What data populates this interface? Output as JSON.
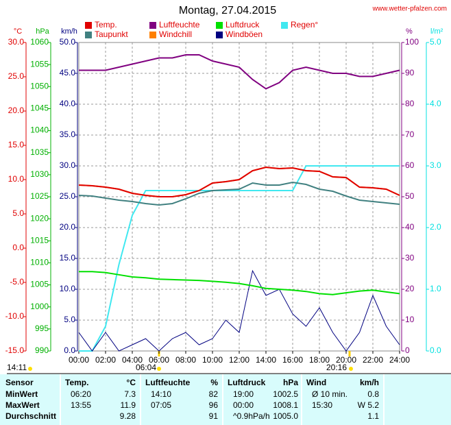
{
  "title": "Montag, 27.04.2015",
  "site": "www.wetter-pfalzen.com",
  "chart_data": {
    "type": "line",
    "grid": true,
    "x": [
      0,
      1,
      2,
      3,
      4,
      5,
      6,
      7,
      8,
      9,
      10,
      11,
      12,
      13,
      14,
      15,
      16,
      17,
      18,
      19,
      20,
      21,
      22,
      23,
      24
    ],
    "xlim": [
      0,
      24
    ],
    "xticks": [
      {
        "value": 0,
        "label": "00:00"
      },
      {
        "value": 2,
        "label": "02:00"
      },
      {
        "value": 4,
        "label": "04:00"
      },
      {
        "value": 6,
        "label": "06:00"
      },
      {
        "value": 8,
        "label": "08:00"
      },
      {
        "value": 10,
        "label": "10:00"
      },
      {
        "value": 12,
        "label": "12:00"
      },
      {
        "value": 14,
        "label": "14:00"
      },
      {
        "value": 16,
        "label": "16:00"
      },
      {
        "value": 18,
        "label": "18:00"
      },
      {
        "value": 20,
        "label": "20:00"
      },
      {
        "value": 22,
        "label": "22:00"
      },
      {
        "value": 24,
        "label": "24:00"
      }
    ],
    "axes": [
      {
        "unit": "°C",
        "side": "left",
        "color": "#e00000",
        "lim": [
          -15,
          30
        ],
        "ticks": [
          {
            "value": -15,
            "label": "-15.0"
          },
          {
            "value": -10,
            "label": "-10.0"
          },
          {
            "value": -5,
            "label": "-5.0"
          },
          {
            "value": 0,
            "label": "0.0"
          },
          {
            "value": 5,
            "label": "5.0"
          },
          {
            "value": 10,
            "label": "10.0"
          },
          {
            "value": 15,
            "label": "15.0"
          },
          {
            "value": 20,
            "label": "20.0"
          },
          {
            "value": 25,
            "label": "25.0"
          },
          {
            "value": 30,
            "label": "30.0"
          }
        ]
      },
      {
        "unit": "hPa",
        "side": "left",
        "color": "#00b000",
        "lim": [
          990,
          1060
        ],
        "ticks": [
          990,
          995,
          1000,
          1005,
          1010,
          1015,
          1020,
          1025,
          1030,
          1035,
          1040,
          1045,
          1050,
          1055,
          1060
        ]
      },
      {
        "unit": "km/h",
        "side": "left",
        "color": "#000080",
        "lim": [
          0,
          50
        ],
        "grid": true,
        "ticks": [
          {
            "value": 0,
            "label": "0.0"
          },
          {
            "value": 5,
            "label": "5.0"
          },
          {
            "value": 10,
            "label": "10.0"
          },
          {
            "value": 15,
            "label": "15.0"
          },
          {
            "value": 20,
            "label": "20.0"
          },
          {
            "value": 25,
            "label": "25.0"
          },
          {
            "value": 30,
            "label": "30.0"
          },
          {
            "value": 35,
            "label": "35.0"
          },
          {
            "value": 40,
            "label": "40.0"
          },
          {
            "value": 45,
            "label": "45.0"
          },
          {
            "value": 50,
            "label": "50.0"
          }
        ]
      },
      {
        "unit": "%",
        "side": "right",
        "color": "#800080",
        "lim": [
          0,
          100
        ],
        "ticks": [
          0,
          10,
          20,
          30,
          40,
          50,
          60,
          70,
          80,
          90,
          100
        ]
      },
      {
        "unit": "l/m²",
        "side": "right",
        "color": "#00e0e0",
        "lim": [
          0,
          5
        ],
        "ticks": [
          {
            "value": 0,
            "label": "0.0"
          },
          {
            "value": 1,
            "label": "1.0"
          },
          {
            "value": 2,
            "label": "2.0"
          },
          {
            "value": 3,
            "label": "3.0"
          },
          {
            "value": 4,
            "label": "4.0"
          },
          {
            "value": 5,
            "label": "5.0"
          }
        ]
      }
    ],
    "series": [
      {
        "name": "Temp.",
        "color": "#e00000",
        "axis": "°C",
        "values": [
          9.2,
          9.1,
          8.9,
          8.6,
          8.0,
          7.7,
          7.5,
          7.5,
          7.8,
          8.4,
          9.5,
          9.7,
          10.0,
          11.3,
          11.8,
          11.6,
          11.7,
          11.3,
          11.2,
          10.4,
          10.3,
          8.9,
          8.8,
          8.6,
          7.7
        ]
      },
      {
        "name": "Luftfeuchte",
        "color": "#800080",
        "axis": "%",
        "values": [
          91,
          91,
          91,
          92,
          93,
          94,
          95,
          95,
          96,
          96,
          94,
          93,
          92,
          88,
          85,
          87,
          91,
          92,
          91,
          90,
          90,
          89,
          89,
          90,
          91
        ]
      },
      {
        "name": "Luftdruck",
        "color": "#00e000",
        "axis": "hPa",
        "values": [
          1008.0,
          1008.0,
          1007.8,
          1007.3,
          1006.8,
          1006.6,
          1006.3,
          1006.2,
          1006.1,
          1006.0,
          1005.8,
          1005.6,
          1005.3,
          1004.8,
          1004.2,
          1004.0,
          1003.8,
          1003.5,
          1003.0,
          1002.8,
          1003.2,
          1003.6,
          1003.8,
          1003.4,
          1003.0
        ]
      },
      {
        "name": "Regen°",
        "color": "#40e8f0",
        "axis": "l/m²",
        "values": [
          0,
          0,
          0.4,
          1.4,
          2.2,
          2.6,
          2.6,
          2.6,
          2.6,
          2.6,
          2.6,
          2.6,
          2.6,
          2.6,
          2.6,
          2.6,
          2.6,
          3.0,
          3.0,
          3.0,
          3.0,
          3.0,
          3.0,
          3.0,
          3.0
        ]
      },
      {
        "name": "Taupunkt",
        "color": "#408080",
        "axis": "°C",
        "values": [
          7.7,
          7.6,
          7.3,
          7.0,
          6.8,
          6.5,
          6.3,
          6.5,
          7.2,
          8.0,
          8.4,
          8.5,
          8.6,
          9.5,
          9.2,
          9.2,
          9.6,
          9.3,
          8.6,
          8.3,
          7.6,
          7.0,
          6.8,
          6.6,
          6.4
        ]
      },
      {
        "name": "Windchill",
        "color": "#ff8000",
        "axis": "°C",
        "values": [
          9.2,
          9.1,
          8.9,
          8.6,
          8.0,
          7.7,
          7.5,
          7.5,
          7.8,
          8.4,
          9.5,
          9.7,
          10.0,
          11.3,
          11.8,
          11.6,
          11.7,
          11.3,
          11.2,
          10.4,
          10.3,
          8.9,
          8.8,
          8.6,
          7.7
        ]
      },
      {
        "name": "Windböen",
        "color": "#000080",
        "axis": "km/h",
        "values": [
          3,
          0,
          3,
          0,
          1,
          2,
          0,
          2,
          3,
          1,
          2,
          5,
          3,
          13,
          9,
          10,
          6,
          4,
          7,
          3,
          0,
          3,
          9,
          4,
          1
        ]
      }
    ]
  },
  "sun": {
    "now": "14:11",
    "sunrise": "06:04",
    "sunset": "20:16"
  },
  "table": {
    "header": {
      "sensor": "Sensor",
      "columns": [
        {
          "name": "Temp.",
          "unit": "°C"
        },
        {
          "name": "Luftfeuchte",
          "unit": "%"
        },
        {
          "name": "Luftdruck",
          "unit": "hPa"
        },
        {
          "name": "Wind",
          "unit": "km/h"
        }
      ]
    },
    "rows": [
      {
        "label": "MinWert",
        "cells": [
          [
            "06:20",
            "7.3"
          ],
          [
            "14:10",
            "82"
          ],
          [
            "19:00",
            "1002.5"
          ],
          [
            "Ø 10 min.",
            "0.8"
          ]
        ]
      },
      {
        "label": "MaxWert",
        "cells": [
          [
            "13:55",
            "11.9"
          ],
          [
            "07:05",
            "96"
          ],
          [
            "00:00",
            "1008.1"
          ],
          [
            "15:30",
            "W 5.2"
          ]
        ]
      },
      {
        "label": "Durchschnitt",
        "cells": [
          [
            null,
            "9.28"
          ],
          [
            null,
            "91"
          ],
          [
            "^0.9hPa/h",
            "1005.0"
          ],
          [
            null,
            "1.1"
          ]
        ]
      }
    ]
  }
}
